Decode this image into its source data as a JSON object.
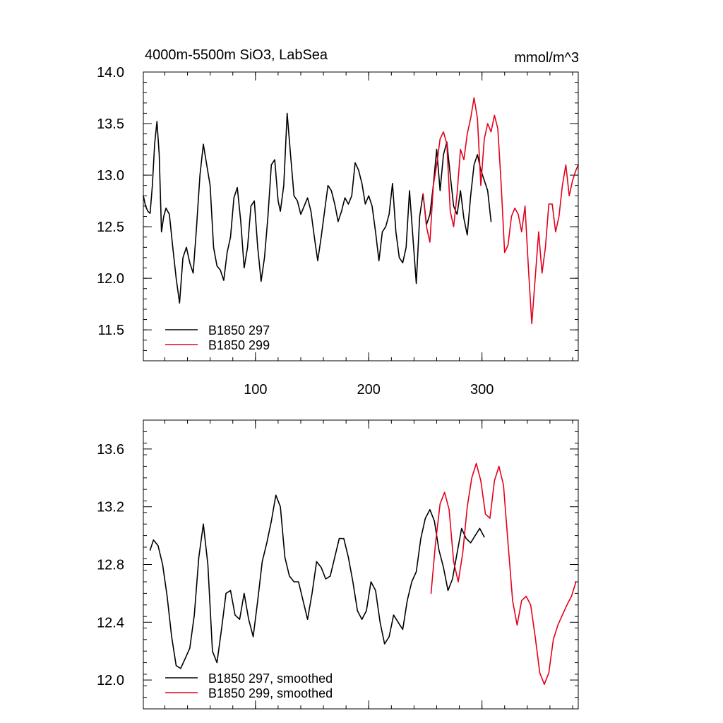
{
  "figure": {
    "title": "4000m-5500m SiO3, LabSea",
    "units": "mmol/m^3"
  },
  "colors": {
    "series_a": "#000000",
    "series_b": "#e3001b"
  },
  "chart_data": [
    {
      "type": "line",
      "title": "4000m-5500m SiO3, LabSea",
      "units_label": "mmol/m^3",
      "xlim": [
        1,
        385
      ],
      "ylim": [
        11.2,
        14.0
      ],
      "x_ticks": [
        100,
        200,
        300
      ],
      "y_ticks": [
        11.5,
        12.0,
        12.5,
        13.0,
        13.5,
        14.0
      ],
      "y_tick_labels": [
        "11.5",
        "12.0",
        "12.5",
        "13.0",
        "13.5",
        "14.0"
      ],
      "x_tick_labels": [
        "100",
        "200",
        "300"
      ],
      "grid": false,
      "legend_position": "bottom-left",
      "series": [
        {
          "name": "B1850 297",
          "color": "#000000",
          "x": [
            1,
            3,
            5,
            7,
            9,
            11,
            13,
            15,
            17,
            19,
            21,
            24,
            27,
            30,
            33,
            36,
            39,
            42,
            45,
            48,
            51,
            54,
            57,
            60,
            63,
            66,
            69,
            72,
            75,
            78,
            81,
            84,
            87,
            90,
            93,
            96,
            99,
            102,
            105,
            108,
            111,
            114,
            117,
            120,
            122,
            125,
            128,
            131,
            134,
            137,
            140,
            143,
            146,
            149,
            152,
            155,
            158,
            161,
            164,
            167,
            170,
            173,
            176,
            179,
            182,
            185,
            188,
            191,
            194,
            197,
            200,
            203,
            206,
            209,
            212,
            215,
            218,
            221,
            224,
            227,
            230,
            233,
            236,
            239,
            242,
            245,
            248,
            251,
            254,
            257,
            260,
            263,
            266,
            269,
            272,
            275,
            278,
            281,
            284,
            287,
            290,
            293,
            296,
            299,
            302,
            305,
            308
          ],
          "y": [
            12.8,
            12.7,
            12.65,
            12.63,
            12.9,
            13.3,
            13.52,
            13.2,
            12.45,
            12.6,
            12.68,
            12.62,
            12.3,
            12.0,
            11.76,
            12.2,
            12.3,
            12.15,
            12.05,
            12.5,
            13.0,
            13.3,
            13.1,
            12.9,
            12.3,
            12.12,
            12.08,
            11.98,
            12.25,
            12.4,
            12.78,
            12.88,
            12.55,
            12.1,
            12.3,
            12.7,
            12.75,
            12.3,
            11.97,
            12.2,
            12.6,
            13.1,
            13.15,
            12.75,
            12.65,
            12.9,
            13.6,
            13.2,
            12.8,
            12.75,
            12.62,
            12.7,
            12.78,
            12.65,
            12.4,
            12.17,
            12.4,
            12.65,
            12.9,
            12.85,
            12.72,
            12.55,
            12.65,
            12.78,
            12.72,
            12.8,
            13.12,
            13.05,
            12.92,
            12.72,
            12.8,
            12.7,
            12.45,
            12.17,
            12.45,
            12.5,
            12.62,
            12.92,
            12.45,
            12.2,
            12.15,
            12.3,
            12.85,
            12.4,
            11.95,
            12.6,
            12.82,
            12.52,
            12.62,
            12.9,
            13.25,
            12.85,
            13.2,
            13.32,
            13.0,
            12.7,
            12.62,
            12.85,
            12.58,
            12.42,
            12.8,
            13.1,
            13.2,
            13.05,
            12.95,
            12.85,
            12.55
          ]
        },
        {
          "name": "B1850 299",
          "color": "#e3001b",
          "x": [
            248,
            251,
            254,
            257,
            260,
            263,
            266,
            269,
            272,
            275,
            278,
            281,
            284,
            287,
            290,
            293,
            296,
            299,
            302,
            305,
            308,
            311,
            314,
            317,
            320,
            323,
            326,
            329,
            332,
            335,
            338,
            341,
            344,
            347,
            350,
            353,
            356,
            359,
            362,
            365,
            368,
            371,
            374,
            377,
            380,
            383,
            385
          ],
          "y": [
            12.82,
            12.5,
            12.35,
            12.9,
            13.1,
            13.35,
            13.42,
            13.3,
            12.65,
            12.5,
            12.82,
            13.25,
            13.15,
            13.4,
            13.55,
            13.75,
            13.55,
            12.9,
            13.35,
            13.5,
            13.42,
            13.58,
            13.45,
            12.9,
            12.25,
            12.32,
            12.6,
            12.68,
            12.62,
            12.45,
            12.7,
            12.1,
            11.56,
            12.0,
            12.45,
            12.05,
            12.3,
            12.72,
            12.72,
            12.45,
            12.6,
            12.9,
            13.1,
            12.8,
            12.95,
            13.05,
            13.1
          ]
        }
      ]
    },
    {
      "type": "line",
      "xlim": [
        1,
        385
      ],
      "ylim": [
        11.8,
        13.8
      ],
      "y_ticks": [
        12.0,
        12.4,
        12.8,
        13.2,
        13.6
      ],
      "y_tick_labels": [
        "12.0",
        "12.4",
        "12.8",
        "13.2",
        "13.6"
      ],
      "x_ticks": [
        100,
        200,
        300
      ],
      "grid": false,
      "legend_position": "bottom-left",
      "series": [
        {
          "name": "B1850 297, smoothed",
          "color": "#000000",
          "x": [
            7,
            10,
            14,
            18,
            22,
            26,
            30,
            34,
            38,
            42,
            46,
            50,
            54,
            58,
            62,
            66,
            70,
            74,
            78,
            82,
            86,
            90,
            94,
            98,
            102,
            106,
            110,
            114,
            118,
            122,
            126,
            130,
            134,
            138,
            142,
            146,
            150,
            154,
            158,
            162,
            166,
            170,
            174,
            178,
            182,
            186,
            190,
            194,
            198,
            202,
            206,
            210,
            214,
            218,
            222,
            226,
            230,
            234,
            238,
            242,
            246,
            250,
            254,
            258,
            262,
            266,
            270,
            274,
            278,
            282,
            286,
            290,
            294,
            298,
            302
          ],
          "y": [
            12.9,
            12.97,
            12.93,
            12.8,
            12.58,
            12.3,
            12.1,
            12.08,
            12.15,
            12.22,
            12.45,
            12.85,
            13.08,
            12.8,
            12.2,
            12.12,
            12.35,
            12.6,
            12.62,
            12.45,
            12.42,
            12.6,
            12.42,
            12.3,
            12.55,
            12.82,
            12.95,
            13.1,
            13.28,
            13.2,
            12.85,
            12.72,
            12.68,
            12.68,
            12.55,
            12.42,
            12.6,
            12.82,
            12.78,
            12.7,
            12.72,
            12.85,
            12.98,
            12.98,
            12.85,
            12.68,
            12.48,
            12.42,
            12.48,
            12.68,
            12.62,
            12.4,
            12.25,
            12.3,
            12.45,
            12.4,
            12.35,
            12.55,
            12.68,
            12.75,
            12.98,
            13.12,
            13.18,
            13.1,
            12.9,
            12.78,
            12.62,
            12.7,
            12.88,
            13.05,
            12.98,
            12.95,
            13.0,
            13.05,
            12.99
          ]
        },
        {
          "name": "B1850 299, smoothed",
          "color": "#e3001b",
          "x": [
            255,
            259,
            263,
            267,
            271,
            275,
            279,
            283,
            287,
            291,
            295,
            299,
            303,
            307,
            311,
            315,
            319,
            323,
            327,
            331,
            335,
            339,
            343,
            347,
            351,
            355,
            359,
            363,
            367,
            371,
            375,
            379,
            383
          ],
          "y": [
            12.6,
            12.95,
            13.22,
            13.3,
            13.18,
            12.82,
            12.68,
            12.88,
            13.2,
            13.4,
            13.5,
            13.38,
            13.15,
            13.12,
            13.38,
            13.48,
            13.35,
            12.95,
            12.55,
            12.38,
            12.55,
            12.58,
            12.52,
            12.3,
            12.05,
            11.97,
            12.05,
            12.28,
            12.38,
            12.45,
            12.52,
            12.58,
            12.68
          ]
        }
      ]
    }
  ]
}
